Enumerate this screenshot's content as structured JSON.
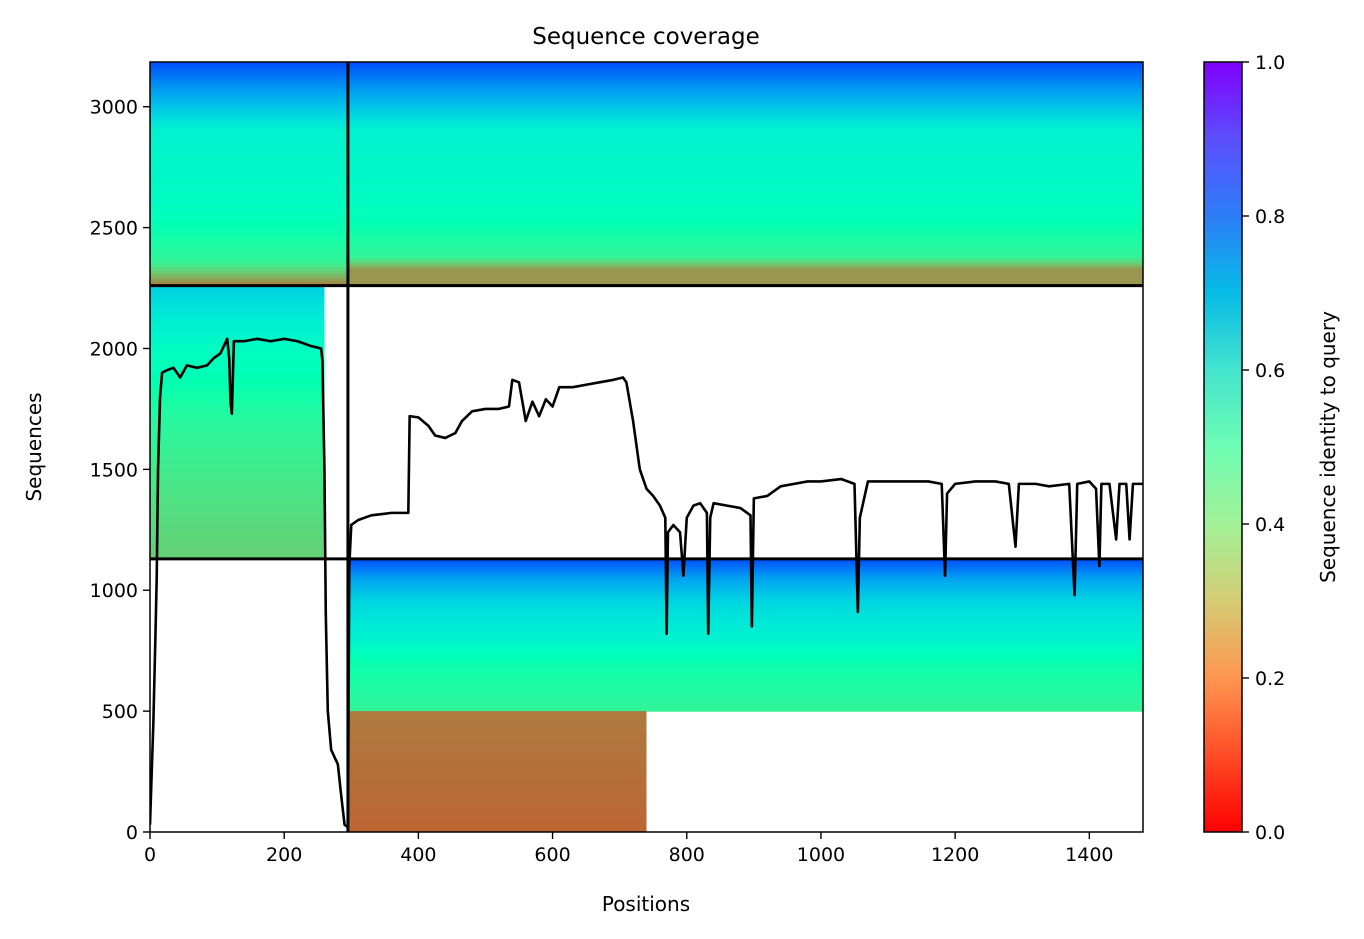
{
  "chart_data": {
    "type": "heatmap",
    "title": "Sequence coverage",
    "xlabel": "Positions",
    "ylabel": "Sequences",
    "xlim": [
      0,
      1480
    ],
    "ylim": [
      0,
      3185
    ],
    "xticks": [
      "0",
      "200",
      "400",
      "600",
      "800",
      "1000",
      "1200",
      "1400"
    ],
    "xtick_values": [
      0,
      200,
      400,
      600,
      800,
      1000,
      1200,
      1400
    ],
    "yticks": [
      "0",
      "500",
      "1000",
      "1500",
      "2000",
      "2500",
      "3000"
    ],
    "ytick_values": [
      0,
      500,
      1000,
      1500,
      2000,
      2500,
      3000
    ],
    "colorbar": {
      "label": "Sequence identity to query",
      "colormap": "rainbow_r",
      "range": [
        0.0,
        1.0
      ],
      "ticks": [
        "0.0",
        "0.2",
        "0.4",
        "0.6",
        "0.8",
        "1.0"
      ],
      "tick_values": [
        0.0,
        0.2,
        0.4,
        0.6,
        0.8,
        1.0
      ]
    },
    "chain_boundaries": {
      "x": [
        295
      ],
      "y": [
        1130,
        2260
      ]
    },
    "blocks": [
      {
        "x": [
          0,
          295
        ],
        "y": [
          2260,
          3185
        ],
        "identity": [
          [
            2260,
            0.15
          ],
          [
            2360,
            0.4
          ],
          [
            2600,
            0.55
          ],
          [
            2900,
            0.6
          ],
          [
            3000,
            0.72
          ],
          [
            3185,
            0.9
          ]
        ]
      },
      {
        "x": [
          295,
          1480
        ],
        "y": [
          2260,
          3185
        ],
        "identity": [
          [
            2330,
            0.2
          ],
          [
            2380,
            0.4
          ],
          [
            2600,
            0.55
          ],
          [
            2900,
            0.6
          ],
          [
            3000,
            0.72
          ],
          [
            3185,
            0.9
          ]
        ]
      },
      {
        "x": [
          0,
          260
        ],
        "y": [
          1130,
          2260
        ],
        "identity": [
          [
            1130,
            0.3
          ],
          [
            1400,
            0.35
          ],
          [
            1700,
            0.42
          ],
          [
            2000,
            0.55
          ],
          [
            2260,
            0.7
          ]
        ]
      },
      {
        "x": [
          295,
          1480
        ],
        "y": [
          500,
          1130
        ],
        "identity": [
          [
            500,
            0.4
          ],
          [
            700,
            0.48
          ],
          [
            800,
            0.6
          ],
          [
            950,
            0.68
          ],
          [
            1050,
            0.78
          ],
          [
            1130,
            0.9
          ]
        ]
      },
      {
        "x": [
          295,
          740
        ],
        "y": [
          0,
          500
        ],
        "identity": [
          [
            0,
            0.13
          ],
          [
            500,
            0.16
          ]
        ]
      }
    ],
    "coverage_line": {
      "name": "coverage",
      "color": "#000000",
      "points": [
        [
          0,
          30
        ],
        [
          2,
          200
        ],
        [
          5,
          450
        ],
        [
          8,
          800
        ],
        [
          10,
          1050
        ],
        [
          12,
          1500
        ],
        [
          15,
          1800
        ],
        [
          18,
          1900
        ],
        [
          25,
          1910
        ],
        [
          35,
          1920
        ],
        [
          45,
          1880
        ],
        [
          55,
          1930
        ],
        [
          70,
          1920
        ],
        [
          85,
          1930
        ],
        [
          95,
          1960
        ],
        [
          105,
          1980
        ],
        [
          115,
          2040
        ],
        [
          118,
          1960
        ],
        [
          120,
          1780
        ],
        [
          122,
          1730
        ],
        [
          125,
          2030
        ],
        [
          140,
          2030
        ],
        [
          160,
          2040
        ],
        [
          180,
          2030
        ],
        [
          200,
          2040
        ],
        [
          220,
          2030
        ],
        [
          240,
          2010
        ],
        [
          255,
          2000
        ],
        [
          257,
          1950
        ],
        [
          260,
          1500
        ],
        [
          262,
          900
        ],
        [
          265,
          500
        ],
        [
          270,
          340
        ],
        [
          280,
          280
        ],
        [
          285,
          150
        ],
        [
          290,
          30
        ],
        [
          295,
          20
        ],
        [
          297,
          1100
        ],
        [
          300,
          1270
        ],
        [
          310,
          1290
        ],
        [
          320,
          1300
        ],
        [
          330,
          1310
        ],
        [
          360,
          1320
        ],
        [
          385,
          1320
        ],
        [
          387,
          1720
        ],
        [
          400,
          1715
        ],
        [
          415,
          1680
        ],
        [
          425,
          1640
        ],
        [
          440,
          1630
        ],
        [
          455,
          1650
        ],
        [
          465,
          1700
        ],
        [
          480,
          1740
        ],
        [
          500,
          1750
        ],
        [
          520,
          1750
        ],
        [
          535,
          1760
        ],
        [
          540,
          1870
        ],
        [
          550,
          1860
        ],
        [
          560,
          1700
        ],
        [
          570,
          1780
        ],
        [
          580,
          1720
        ],
        [
          590,
          1790
        ],
        [
          600,
          1760
        ],
        [
          610,
          1840
        ],
        [
          630,
          1840
        ],
        [
          650,
          1850
        ],
        [
          670,
          1860
        ],
        [
          690,
          1870
        ],
        [
          705,
          1880
        ],
        [
          710,
          1860
        ],
        [
          715,
          1780
        ],
        [
          720,
          1700
        ],
        [
          725,
          1600
        ],
        [
          730,
          1500
        ],
        [
          740,
          1420
        ],
        [
          750,
          1390
        ],
        [
          760,
          1350
        ],
        [
          768,
          1300
        ],
        [
          770,
          820
        ],
        [
          772,
          1240
        ],
        [
          780,
          1270
        ],
        [
          790,
          1240
        ],
        [
          795,
          1060
        ],
        [
          800,
          1300
        ],
        [
          810,
          1350
        ],
        [
          820,
          1360
        ],
        [
          830,
          1320
        ],
        [
          832,
          820
        ],
        [
          835,
          1300
        ],
        [
          840,
          1360
        ],
        [
          860,
          1350
        ],
        [
          880,
          1340
        ],
        [
          895,
          1310
        ],
        [
          897,
          850
        ],
        [
          900,
          1380
        ],
        [
          920,
          1390
        ],
        [
          940,
          1430
        ],
        [
          960,
          1440
        ],
        [
          980,
          1450
        ],
        [
          1000,
          1450
        ],
        [
          1030,
          1460
        ],
        [
          1050,
          1440
        ],
        [
          1055,
          910
        ],
        [
          1058,
          1300
        ],
        [
          1070,
          1450
        ],
        [
          1100,
          1450
        ],
        [
          1130,
          1450
        ],
        [
          1160,
          1450
        ],
        [
          1180,
          1440
        ],
        [
          1185,
          1060
        ],
        [
          1188,
          1400
        ],
        [
          1200,
          1440
        ],
        [
          1230,
          1450
        ],
        [
          1260,
          1450
        ],
        [
          1280,
          1440
        ],
        [
          1290,
          1180
        ],
        [
          1295,
          1440
        ],
        [
          1320,
          1440
        ],
        [
          1340,
          1430
        ],
        [
          1370,
          1440
        ],
        [
          1378,
          980
        ],
        [
          1382,
          1440
        ],
        [
          1400,
          1450
        ],
        [
          1410,
          1420
        ],
        [
          1415,
          1100
        ],
        [
          1418,
          1440
        ],
        [
          1430,
          1440
        ],
        [
          1440,
          1210
        ],
        [
          1445,
          1440
        ],
        [
          1455,
          1440
        ],
        [
          1460,
          1210
        ],
        [
          1465,
          1440
        ],
        [
          1480,
          1440
        ]
      ]
    }
  }
}
